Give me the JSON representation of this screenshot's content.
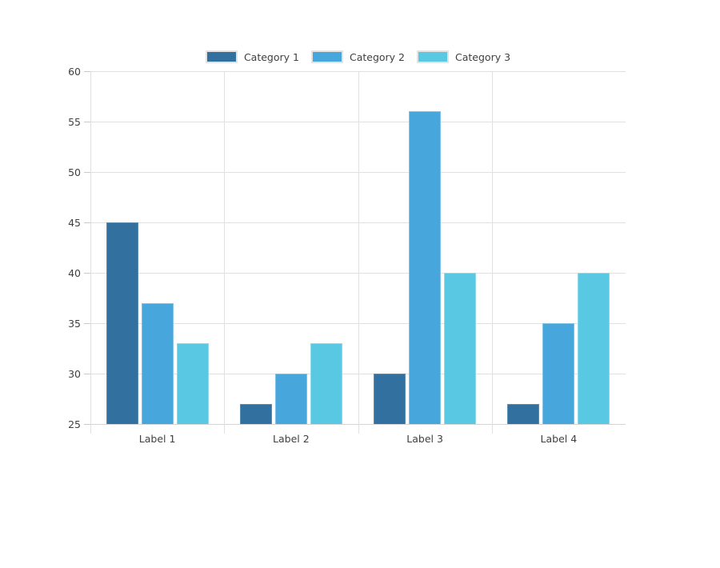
{
  "chart_data": {
    "type": "bar",
    "title": "",
    "xlabel": "",
    "ylabel": "",
    "categories": [
      "Label 1",
      "Label 2",
      "Label 3",
      "Label 4"
    ],
    "series": [
      {
        "name": "Category 1",
        "values": [
          45,
          27,
          30,
          27
        ],
        "color": "#31709F",
        "border_color": "#5A8FB5"
      },
      {
        "name": "Category 2",
        "values": [
          37,
          30,
          56,
          35
        ],
        "color": "#47A7DC",
        "border_color": "#7FC4E8"
      },
      {
        "name": "Category 3",
        "values": [
          33,
          33,
          40,
          40
        ],
        "color": "#58C8E3",
        "border_color": "#8FD9EC"
      }
    ],
    "ylim": [
      25,
      60
    ],
    "yticks": [
      25,
      30,
      35,
      40,
      45,
      50,
      55,
      60
    ],
    "grid": true,
    "legend_position": "top-center"
  },
  "style_colors": {
    "background": "#FFFFFF",
    "grid_line": "#E0E0E0",
    "axis_line": "#D4D4D4",
    "tick_mark": "#C9C9C9",
    "text": "#3F3F3F",
    "legend_swatch_border": "#E3E3E3"
  }
}
